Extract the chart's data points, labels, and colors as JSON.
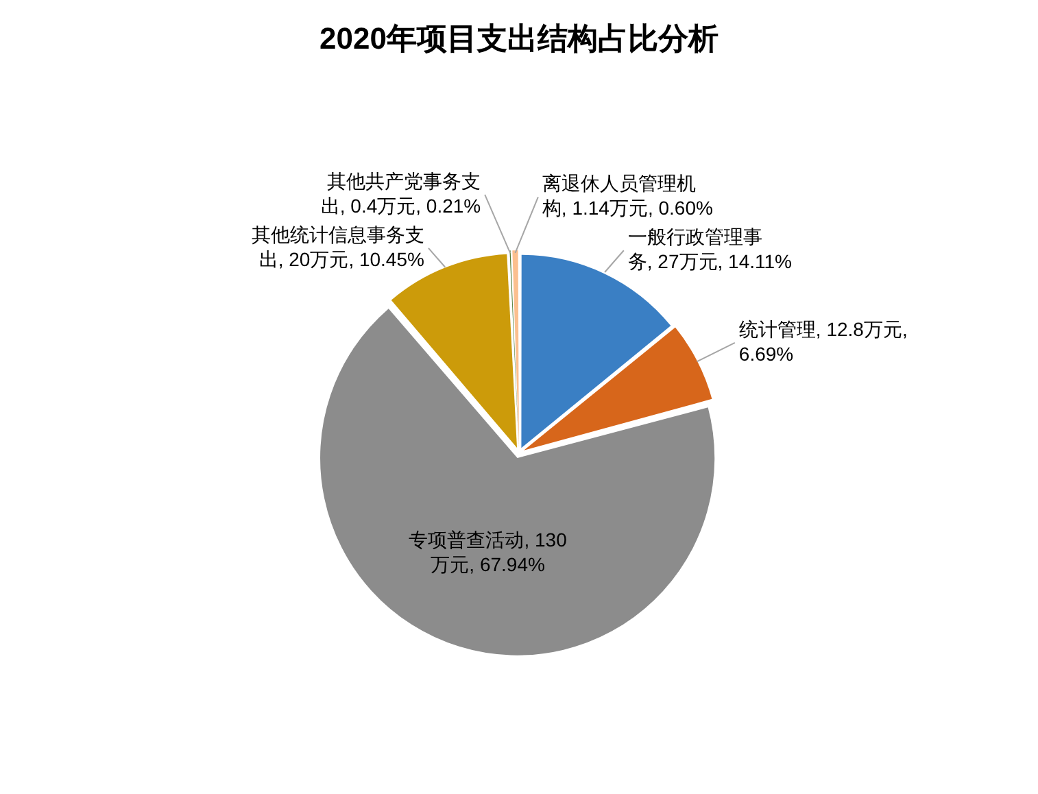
{
  "chart_data": {
    "type": "pie",
    "title": "2020年项目支出结构占比分析",
    "categories": [
      "一般行政管理事务",
      "统计管理",
      "专项普查活动",
      "其他统计信息事务支出",
      "其他共产党事务支出",
      "离退休人员管理机构"
    ],
    "values": [
      27,
      12.8,
      130,
      20,
      0.4,
      1.14
    ],
    "colors": [
      "#3a7fc4",
      "#d7661b",
      "#8c8c8c",
      "#cc9b0a",
      "#4e7a34",
      "#fbbf8f"
    ],
    "value_labels": [
      "27万元, 14.11%",
      "12.8万元, 6.69%",
      "130万元, 67.94%",
      "20万元, 10.45%",
      "0.4万元, 0.21%",
      "1.14万元, 0.60%"
    ]
  }
}
